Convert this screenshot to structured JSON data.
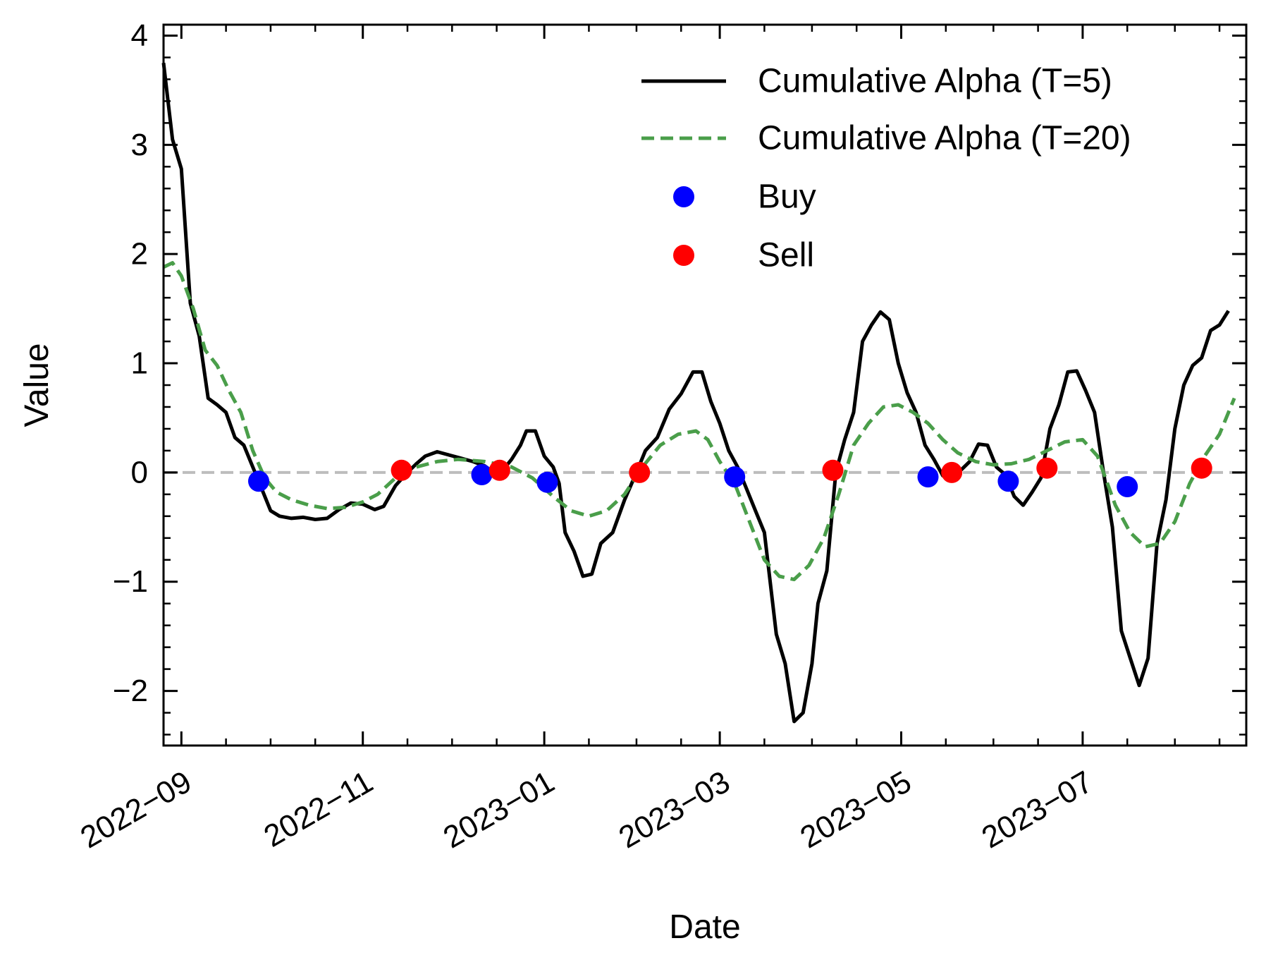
{
  "chart_data": {
    "type": "line",
    "xlabel": "Date",
    "ylabel": "Value",
    "xlim": [
      "2022-08-26",
      "2023-08-25"
    ],
    "ylim": [
      -2.5,
      4.1
    ],
    "x_ticks": [
      "2022-09-01",
      "2022-11-01",
      "2023-01-01",
      "2023-03-01",
      "2023-05-01",
      "2023-07-01"
    ],
    "x_tick_labels": [
      "2022−09",
      "2022−11",
      "2023−01",
      "2023−03",
      "2023−05",
      "2023−07"
    ],
    "y_ticks": [
      -2,
      -1,
      0,
      1,
      2,
      3,
      4
    ],
    "y_tick_labels": [
      "−2",
      "−1",
      "0",
      "1",
      "2",
      "3",
      "4"
    ],
    "zero_line": {
      "y": 0,
      "color": "#bdbdbd",
      "style": "dashed"
    },
    "legend_position": "top-right",
    "colors": {
      "t5": "#000000",
      "t20": "#4a9e4a",
      "buy": "#0000ff",
      "sell": "#ff0000"
    },
    "series": [
      {
        "name": "Cumulative Alpha (T=5)",
        "style": "solid",
        "points": [
          [
            "2022-08-26",
            3.75
          ],
          [
            "2022-08-29",
            3.05
          ],
          [
            "2022-09-01",
            2.78
          ],
          [
            "2022-09-04",
            1.55
          ],
          [
            "2022-09-07",
            1.25
          ],
          [
            "2022-09-10",
            0.68
          ],
          [
            "2022-09-13",
            0.62
          ],
          [
            "2022-09-16",
            0.55
          ],
          [
            "2022-09-19",
            0.32
          ],
          [
            "2022-09-22",
            0.25
          ],
          [
            "2022-09-25",
            0.05
          ],
          [
            "2022-09-28",
            -0.15
          ],
          [
            "2022-10-01",
            -0.35
          ],
          [
            "2022-10-04",
            -0.4
          ],
          [
            "2022-10-08",
            -0.42
          ],
          [
            "2022-10-12",
            -0.41
          ],
          [
            "2022-10-16",
            -0.43
          ],
          [
            "2022-10-20",
            -0.42
          ],
          [
            "2022-10-24",
            -0.34
          ],
          [
            "2022-10-28",
            -0.28
          ],
          [
            "2022-11-01",
            -0.29
          ],
          [
            "2022-11-05",
            -0.34
          ],
          [
            "2022-11-08",
            -0.31
          ],
          [
            "2022-11-12",
            -0.12
          ],
          [
            "2022-11-16",
            0.0
          ],
          [
            "2022-11-19",
            0.08
          ],
          [
            "2022-11-22",
            0.15
          ],
          [
            "2022-11-26",
            0.19
          ],
          [
            "2022-11-30",
            0.16
          ],
          [
            "2022-12-04",
            0.13
          ],
          [
            "2022-12-08",
            0.1
          ],
          [
            "2022-12-12",
            0.06
          ],
          [
            "2022-12-15",
            0.0
          ],
          [
            "2022-12-18",
            0.02
          ],
          [
            "2022-12-21",
            0.12
          ],
          [
            "2022-12-24",
            0.25
          ],
          [
            "2022-12-26",
            0.38
          ],
          [
            "2022-12-29",
            0.38
          ],
          [
            "2023-01-01",
            0.15
          ],
          [
            "2023-01-04",
            0.05
          ],
          [
            "2023-01-06",
            -0.1
          ],
          [
            "2023-01-08",
            -0.55
          ],
          [
            "2023-01-11",
            -0.72
          ],
          [
            "2023-01-14",
            -0.95
          ],
          [
            "2023-01-17",
            -0.93
          ],
          [
            "2023-01-20",
            -0.65
          ],
          [
            "2023-01-24",
            -0.55
          ],
          [
            "2023-01-28",
            -0.25
          ],
          [
            "2023-02-01",
            0.0
          ],
          [
            "2023-02-04",
            0.2
          ],
          [
            "2023-02-08",
            0.32
          ],
          [
            "2023-02-12",
            0.58
          ],
          [
            "2023-02-16",
            0.72
          ],
          [
            "2023-02-20",
            0.92
          ],
          [
            "2023-02-23",
            0.92
          ],
          [
            "2023-02-26",
            0.65
          ],
          [
            "2023-03-01",
            0.45
          ],
          [
            "2023-03-04",
            0.2
          ],
          [
            "2023-03-07",
            0.05
          ],
          [
            "2023-03-10",
            -0.15
          ],
          [
            "2023-03-13",
            -0.35
          ],
          [
            "2023-03-16",
            -0.55
          ],
          [
            "2023-03-20",
            -1.48
          ],
          [
            "2023-03-23",
            -1.75
          ],
          [
            "2023-03-26",
            -2.28
          ],
          [
            "2023-03-29",
            -2.2
          ],
          [
            "2023-04-01",
            -1.75
          ],
          [
            "2023-04-03",
            -1.2
          ],
          [
            "2023-04-06",
            -0.9
          ],
          [
            "2023-04-09",
            0.0
          ],
          [
            "2023-04-12",
            0.3
          ],
          [
            "2023-04-15",
            0.55
          ],
          [
            "2023-04-18",
            1.2
          ],
          [
            "2023-04-21",
            1.35
          ],
          [
            "2023-04-24",
            1.47
          ],
          [
            "2023-04-27",
            1.4
          ],
          [
            "2023-04-30",
            1.0
          ],
          [
            "2023-05-03",
            0.73
          ],
          [
            "2023-05-06",
            0.55
          ],
          [
            "2023-05-09",
            0.25
          ],
          [
            "2023-05-12",
            0.12
          ],
          [
            "2023-05-15",
            -0.03
          ],
          [
            "2023-05-18",
            -0.05
          ],
          [
            "2023-05-21",
            0.02
          ],
          [
            "2023-05-24",
            0.1
          ],
          [
            "2023-05-27",
            0.26
          ],
          [
            "2023-05-30",
            0.25
          ],
          [
            "2023-06-02",
            0.05
          ],
          [
            "2023-06-05",
            -0.02
          ],
          [
            "2023-06-08",
            -0.22
          ],
          [
            "2023-06-11",
            -0.3
          ],
          [
            "2023-06-14",
            -0.18
          ],
          [
            "2023-06-17",
            -0.05
          ],
          [
            "2023-06-20",
            0.4
          ],
          [
            "2023-06-23",
            0.62
          ],
          [
            "2023-06-26",
            0.92
          ],
          [
            "2023-06-29",
            0.93
          ],
          [
            "2023-07-02",
            0.75
          ],
          [
            "2023-07-05",
            0.55
          ],
          [
            "2023-07-08",
            0.0
          ],
          [
            "2023-07-11",
            -0.5
          ],
          [
            "2023-07-14",
            -1.45
          ],
          [
            "2023-07-17",
            -1.7
          ],
          [
            "2023-07-20",
            -1.95
          ],
          [
            "2023-07-23",
            -1.7
          ],
          [
            "2023-07-26",
            -0.65
          ],
          [
            "2023-07-29",
            -0.25
          ],
          [
            "2023-08-01",
            0.4
          ],
          [
            "2023-08-04",
            0.8
          ],
          [
            "2023-08-07",
            0.98
          ],
          [
            "2023-08-10",
            1.05
          ],
          [
            "2023-08-13",
            1.3
          ],
          [
            "2023-08-16",
            1.35
          ],
          [
            "2023-08-19",
            1.48
          ]
        ]
      },
      {
        "name": "Cumulative Alpha (T=20)",
        "style": "dashed",
        "points": [
          [
            "2022-08-26",
            1.88
          ],
          [
            "2022-08-29",
            1.92
          ],
          [
            "2022-09-01",
            1.8
          ],
          [
            "2022-09-05",
            1.5
          ],
          [
            "2022-09-09",
            1.12
          ],
          [
            "2022-09-13",
            0.98
          ],
          [
            "2022-09-17",
            0.75
          ],
          [
            "2022-09-21",
            0.55
          ],
          [
            "2022-09-25",
            0.2
          ],
          [
            "2022-09-29",
            -0.05
          ],
          [
            "2022-10-03",
            -0.18
          ],
          [
            "2022-10-08",
            -0.25
          ],
          [
            "2022-10-14",
            -0.3
          ],
          [
            "2022-10-20",
            -0.33
          ],
          [
            "2022-10-26",
            -0.32
          ],
          [
            "2022-11-01",
            -0.27
          ],
          [
            "2022-11-06",
            -0.2
          ],
          [
            "2022-11-12",
            -0.05
          ],
          [
            "2022-11-19",
            0.05
          ],
          [
            "2022-11-26",
            0.1
          ],
          [
            "2022-12-03",
            0.12
          ],
          [
            "2022-12-12",
            0.1
          ],
          [
            "2022-12-21",
            0.05
          ],
          [
            "2022-12-28",
            -0.05
          ],
          [
            "2023-01-04",
            -0.22
          ],
          [
            "2023-01-10",
            -0.35
          ],
          [
            "2023-01-16",
            -0.4
          ],
          [
            "2023-01-22",
            -0.35
          ],
          [
            "2023-01-28",
            -0.2
          ],
          [
            "2023-02-03",
            0.05
          ],
          [
            "2023-02-09",
            0.25
          ],
          [
            "2023-02-15",
            0.35
          ],
          [
            "2023-02-21",
            0.38
          ],
          [
            "2023-02-25",
            0.3
          ],
          [
            "2023-03-01",
            0.1
          ],
          [
            "2023-03-06",
            -0.1
          ],
          [
            "2023-03-11",
            -0.45
          ],
          [
            "2023-03-16",
            -0.8
          ],
          [
            "2023-03-21",
            -0.95
          ],
          [
            "2023-03-26",
            -0.98
          ],
          [
            "2023-03-31",
            -0.85
          ],
          [
            "2023-04-05",
            -0.6
          ],
          [
            "2023-04-10",
            -0.2
          ],
          [
            "2023-04-15",
            0.25
          ],
          [
            "2023-04-20",
            0.45
          ],
          [
            "2023-04-25",
            0.6
          ],
          [
            "2023-04-30",
            0.62
          ],
          [
            "2023-05-05",
            0.55
          ],
          [
            "2023-05-10",
            0.45
          ],
          [
            "2023-05-15",
            0.3
          ],
          [
            "2023-05-20",
            0.18
          ],
          [
            "2023-05-26",
            0.1
          ],
          [
            "2023-06-01",
            0.07
          ],
          [
            "2023-06-07",
            0.08
          ],
          [
            "2023-06-13",
            0.12
          ],
          [
            "2023-06-19",
            0.2
          ],
          [
            "2023-06-25",
            0.28
          ],
          [
            "2023-07-01",
            0.3
          ],
          [
            "2023-07-06",
            0.15
          ],
          [
            "2023-07-12",
            -0.3
          ],
          [
            "2023-07-17",
            -0.55
          ],
          [
            "2023-07-22",
            -0.68
          ],
          [
            "2023-07-27",
            -0.65
          ],
          [
            "2023-08-01",
            -0.45
          ],
          [
            "2023-08-06",
            -0.1
          ],
          [
            "2023-08-11",
            0.15
          ],
          [
            "2023-08-16",
            0.35
          ],
          [
            "2023-08-21",
            0.68
          ]
        ]
      }
    ],
    "markers": [
      {
        "name": "Buy",
        "points": [
          [
            "2022-09-27",
            -0.08
          ],
          [
            "2022-12-11",
            -0.02
          ],
          [
            "2023-01-02",
            -0.09
          ],
          [
            "2023-03-06",
            -0.04
          ],
          [
            "2023-05-10",
            -0.04
          ],
          [
            "2023-06-06",
            -0.08
          ],
          [
            "2023-07-16",
            -0.13
          ]
        ]
      },
      {
        "name": "Sell",
        "points": [
          [
            "2022-11-14",
            0.02
          ],
          [
            "2022-12-17",
            0.02
          ],
          [
            "2023-02-02",
            0.0
          ],
          [
            "2023-04-08",
            0.02
          ],
          [
            "2023-05-18",
            0.0
          ],
          [
            "2023-06-19",
            0.04
          ],
          [
            "2023-08-10",
            0.04
          ]
        ]
      }
    ]
  }
}
